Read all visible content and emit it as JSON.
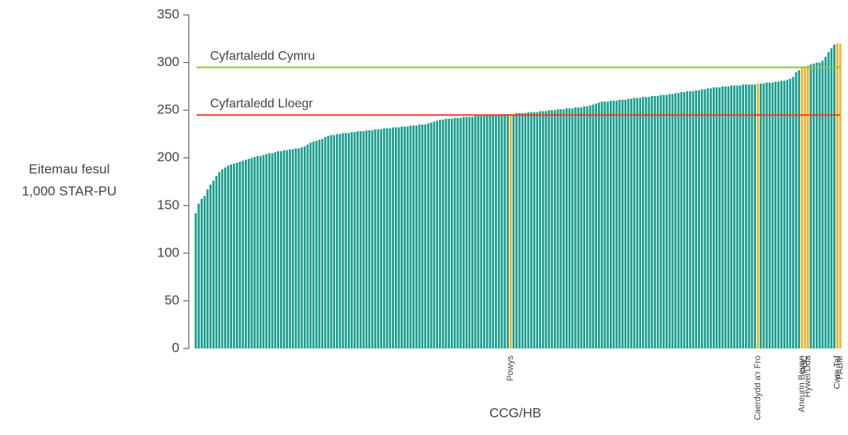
{
  "chart_data": {
    "type": "bar",
    "y_axis_label": [
      "Eitemau fesul",
      "1,000 STAR-PU"
    ],
    "x_axis_label": "CCG/HB",
    "color": "#1a9e8f",
    "highlight_color": "#f5b324",
    "ylim": [
      0,
      350
    ],
    "yticks": [
      0,
      50,
      100,
      150,
      200,
      250,
      300,
      350
    ],
    "reference_lines": [
      {
        "label": "Cyfartaledd Cymru",
        "value": 295,
        "color": "#8dc63f"
      },
      {
        "label": "Cyfartaledd Lloegr",
        "value": 245,
        "color": "#e8412c"
      }
    ],
    "categories": [
      null,
      null,
      null,
      null,
      null,
      null,
      null,
      null,
      null,
      null,
      null,
      null,
      null,
      null,
      null,
      null,
      null,
      null,
      null,
      null,
      null,
      null,
      null,
      null,
      null,
      null,
      null,
      null,
      null,
      null,
      null,
      null,
      null,
      null,
      null,
      null,
      null,
      null,
      null,
      null,
      null,
      null,
      null,
      null,
      null,
      null,
      null,
      null,
      null,
      null,
      null,
      null,
      null,
      null,
      null,
      null,
      null,
      null,
      null,
      null,
      null,
      null,
      null,
      null,
      null,
      null,
      null,
      null,
      null,
      null,
      null,
      null,
      null,
      null,
      null,
      null,
      null,
      null,
      null,
      null,
      null,
      null,
      null,
      null,
      null,
      null,
      null,
      null,
      null,
      null,
      null,
      null,
      null,
      null,
      null,
      null,
      null,
      null,
      null,
      null,
      null,
      null,
      null,
      null,
      null,
      null,
      null,
      "Powys",
      null,
      null,
      null,
      null,
      null,
      null,
      null,
      null,
      null,
      null,
      null,
      null,
      null,
      null,
      null,
      null,
      null,
      null,
      null,
      null,
      null,
      null,
      null,
      null,
      null,
      null,
      null,
      null,
      null,
      null,
      null,
      null,
      null,
      null,
      null,
      null,
      null,
      null,
      null,
      null,
      null,
      null,
      null,
      null,
      null,
      null,
      null,
      null,
      null,
      null,
      null,
      null,
      null,
      null,
      null,
      null,
      null,
      null,
      null,
      null,
      null,
      null,
      null,
      null,
      null,
      null,
      null,
      null,
      null,
      null,
      null,
      null,
      null,
      null,
      null,
      null,
      null,
      null,
      null,
      null,
      null,
      null,
      null,
      "Caerdydd a'r Fro",
      null,
      null,
      null,
      null,
      null,
      null,
      null,
      null,
      null,
      null,
      null,
      null,
      null,
      null,
      "Aneurin Bevan",
      "PBC",
      "Hywel Dda",
      null,
      null,
      null,
      null,
      null,
      null,
      null,
      null,
      null,
      "Cwm Taf",
      "PABM"
    ],
    "values": [
      142,
      152,
      157,
      160,
      167,
      172,
      176,
      181,
      185,
      188,
      190,
      192,
      193,
      194,
      195,
      196,
      197,
      198,
      199,
      200,
      201,
      202,
      202,
      203,
      204,
      205,
      205,
      206,
      207,
      207,
      208,
      208,
      209,
      209,
      210,
      210,
      211,
      212,
      214,
      216,
      217,
      218,
      219,
      220,
      222,
      223,
      224,
      224,
      225,
      225,
      226,
      226,
      226,
      227,
      227,
      228,
      228,
      228,
      229,
      229,
      229,
      230,
      230,
      230,
      231,
      231,
      231,
      232,
      232,
      232,
      233,
      233,
      233,
      234,
      234,
      234,
      235,
      235,
      235,
      236,
      237,
      238,
      239,
      240,
      240,
      241,
      241,
      241,
      242,
      242,
      242,
      243,
      243,
      243,
      243,
      244,
      244,
      244,
      244,
      245,
      245,
      245,
      245,
      245,
      246,
      246,
      246,
      246,
      246,
      247,
      247,
      247,
      247,
      248,
      248,
      248,
      248,
      249,
      249,
      249,
      250,
      250,
      250,
      251,
      251,
      251,
      252,
      252,
      252,
      253,
      253,
      253,
      254,
      254,
      255,
      256,
      257,
      258,
      259,
      259,
      259,
      260,
      260,
      260,
      261,
      261,
      261,
      262,
      262,
      263,
      263,
      263,
      264,
      264,
      264,
      265,
      265,
      265,
      266,
      266,
      266,
      267,
      267,
      268,
      268,
      269,
      269,
      270,
      270,
      270,
      271,
      271,
      272,
      272,
      273,
      273,
      274,
      274,
      274,
      275,
      275,
      275,
      276,
      276,
      276,
      276,
      277,
      277,
      277,
      277,
      277,
      278,
      278,
      278,
      279,
      279,
      279,
      280,
      280,
      281,
      281,
      282,
      283,
      285,
      290,
      292,
      295,
      296,
      297,
      298,
      299,
      300,
      300,
      302,
      306,
      311,
      315,
      319,
      320,
      320
    ]
  }
}
